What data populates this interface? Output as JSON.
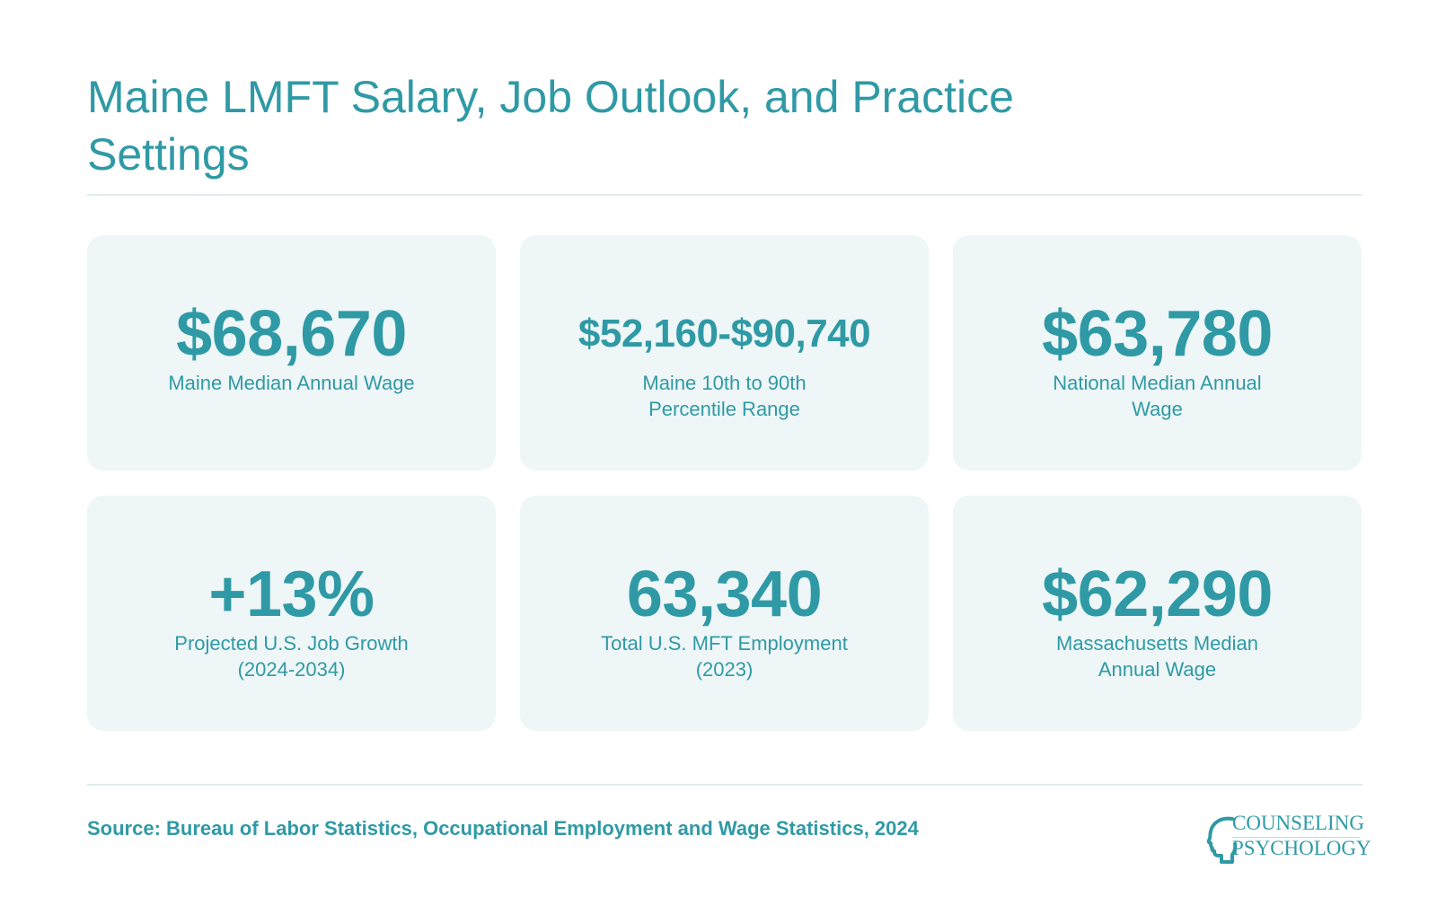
{
  "title": "Maine LMFT Salary, Job Outlook, and Practice Settings",
  "cards": [
    {
      "value": "$68,670",
      "label": "Maine Median Annual Wage"
    },
    {
      "value": "$52,160-$90,740",
      "label": "Maine 10th to 90th Percentile Range"
    },
    {
      "value": "$63,780",
      "label": "National Median Annual Wage"
    },
    {
      "value": "+13%",
      "label": "Projected U.S. Job Growth (2024-2034)"
    },
    {
      "value": "63,340",
      "label": "Total U.S. MFT Employment (2023)"
    },
    {
      "value": "$62,290",
      "label": "Massachusetts Median Annual Wage"
    }
  ],
  "source": "Source: Bureau of Labor Statistics, Occupational Employment and Wage Statistics, 2024",
  "logo": {
    "line1": "COUNSELING",
    "line2": "PSYCHOLOGY",
    "icon": "head-profile-icon"
  },
  "colors": {
    "accent": "#2f9aa5",
    "card_bg": "#eef6f7",
    "rule": "#e0ecee",
    "background": "#ffffff"
  }
}
